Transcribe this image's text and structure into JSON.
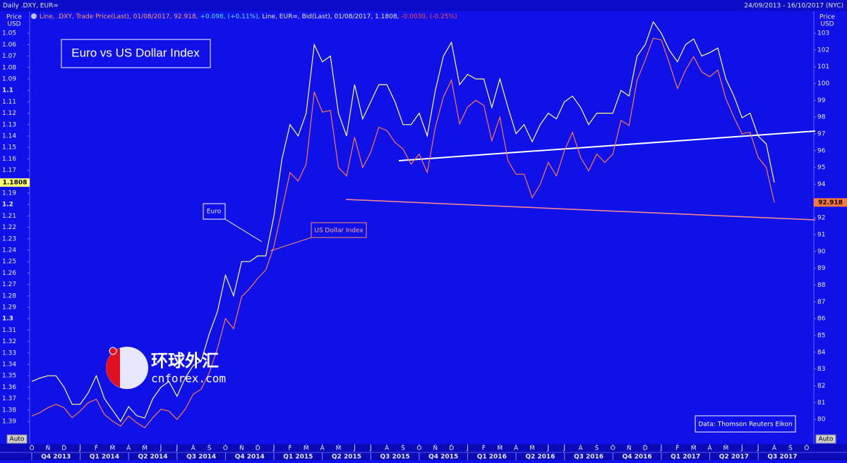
{
  "chart_data": {
    "type": "line",
    "header": "Daily .DXY, EUR=",
    "date_range": "24/09/2013 - 16/10/2017 (NYC)",
    "legend_segments": [
      {
        "text": "Line, .DXY, Trade Price(Last), 01/08/2017, 92.918, ",
        "color": "#ff9a6a"
      },
      {
        "text": "+0.098, (+0.11%), ",
        "color": "#4fe8ff"
      },
      {
        "text": "Line, EUR=, Bid(Last), 01/08/2017, 1.1808, ",
        "color": "#e8e8ff"
      },
      {
        "text": "-0.0030, (-0.25%)",
        "color": "#ff4a4a"
      }
    ],
    "title": "Euro vs US Dollar Index",
    "annotations": [
      {
        "text": "Euro"
      },
      {
        "text": "US Dollar Index"
      }
    ],
    "source": "Data: Thomson Reuters Eikon",
    "watermark": [
      "环球外汇",
      "cnforex.com"
    ],
    "auto_buttons": [
      "Auto",
      "Auto"
    ],
    "y_label": [
      "Price",
      "USD"
    ],
    "y2_label": [
      "Price",
      "USD"
    ],
    "grid": false,
    "categories": [
      "O",
      null,
      "N",
      null,
      "D",
      null,
      "J",
      null,
      "F",
      null,
      "M",
      null,
      "A",
      null,
      "M",
      null,
      "J",
      null,
      "J",
      null,
      "A",
      null,
      "S",
      null,
      "O",
      null,
      "N",
      null,
      "D",
      null,
      "J",
      null,
      "F",
      null,
      "M",
      null,
      "A",
      null,
      "M",
      null,
      "J",
      null,
      "J",
      null,
      "A",
      null,
      "S",
      null,
      "O",
      null,
      "N",
      null,
      "D",
      null,
      "J",
      null,
      "F",
      null,
      "M",
      null,
      "A",
      null,
      "M",
      null,
      "J",
      null,
      "J",
      null,
      "A",
      null,
      "S",
      null,
      "O",
      null,
      "N",
      null,
      "D",
      null,
      "J",
      null,
      "F",
      null,
      "M",
      null,
      "A",
      null,
      "M",
      null,
      "J",
      null,
      "J",
      null,
      "A",
      null,
      "S",
      null,
      "O"
    ],
    "quarters": [
      "Q4 2013",
      "Q1 2014",
      "Q2 2014",
      "Q3 2014",
      "Q4 2014",
      "Q1 2015",
      "Q2 2015",
      "Q3 2015",
      "Q4 2015",
      "Q1 2016",
      "Q2 2016",
      "Q3 2016",
      "Q4 2016",
      "Q1 2017",
      "Q2 2017",
      "Q3 2017"
    ],
    "series": [
      {
        "name": "Euro",
        "color": "#ffff70",
        "axis": "y",
        "tag_text_color": "#000000",
        "values": [
          1.355,
          1.352,
          1.35,
          1.35,
          1.36,
          1.375,
          1.375,
          1.365,
          1.35,
          1.37,
          1.38,
          1.39,
          1.377,
          1.385,
          1.387,
          1.37,
          1.36,
          1.355,
          1.368,
          1.352,
          1.341,
          1.337,
          1.313,
          1.294,
          1.262,
          1.28,
          1.25,
          1.25,
          1.245,
          1.245,
          1.21,
          1.16,
          1.13,
          1.14,
          1.12,
          1.06,
          1.075,
          1.07,
          1.12,
          1.14,
          1.095,
          1.125,
          1.11,
          1.095,
          1.095,
          1.11,
          1.13,
          1.13,
          1.12,
          1.14,
          1.1,
          1.07,
          1.058,
          1.095,
          1.086,
          1.09,
          1.09,
          1.115,
          1.09,
          1.115,
          1.138,
          1.13,
          1.145,
          1.13,
          1.12,
          1.125,
          1.11,
          1.105,
          1.115,
          1.13,
          1.12,
          1.12,
          1.12,
          1.1,
          1.105,
          1.07,
          1.06,
          1.04,
          1.05,
          1.065,
          1.075,
          1.06,
          1.055,
          1.07,
          1.067,
          1.063,
          1.09,
          1.105,
          1.124,
          1.12,
          1.14,
          1.147,
          1.1808,
          null,
          null,
          null,
          null
        ]
      },
      {
        "name": "US Dollar Index",
        "color": "#ff7a3a",
        "axis": "y2",
        "tag_text_color": "#000000",
        "values": [
          80.2,
          80.4,
          80.7,
          80.9,
          80.7,
          80.1,
          80.5,
          81.0,
          81.2,
          80.3,
          79.9,
          79.6,
          80.2,
          79.8,
          79.5,
          80.1,
          80.6,
          80.5,
          80.0,
          80.6,
          81.5,
          81.8,
          82.8,
          84.2,
          86.0,
          85.4,
          87.3,
          87.8,
          88.4,
          88.9,
          90.3,
          92.5,
          94.7,
          94.2,
          95.2,
          99.5,
          98.3,
          98.4,
          95.0,
          94.5,
          96.8,
          95.0,
          95.9,
          97.4,
          97.2,
          96.5,
          96.1,
          95.2,
          95.8,
          94.7,
          97.4,
          99.2,
          100.2,
          97.6,
          98.6,
          99.0,
          98.7,
          96.6,
          98.0,
          95.4,
          94.6,
          94.6,
          93.2,
          94.0,
          95.3,
          94.5,
          96.0,
          97.1,
          95.6,
          94.8,
          95.8,
          95.3,
          95.8,
          97.8,
          97.5,
          100.2,
          101.4,
          102.7,
          102.6,
          101.2,
          99.7,
          100.8,
          101.6,
          100.7,
          100.4,
          100.8,
          99.1,
          98.0,
          97.0,
          97.1,
          95.6,
          95.0,
          92.918,
          null,
          null,
          null,
          null
        ]
      }
    ],
    "ylim": [
      1.4085,
      1.032
    ],
    "yticks": [
      1.05,
      1.06,
      1.07,
      1.08,
      1.09,
      1.1,
      1.11,
      1.12,
      1.13,
      1.14,
      1.15,
      1.16,
      1.17,
      1.18,
      1.19,
      1.2,
      1.21,
      1.22,
      1.23,
      1.24,
      1.25,
      1.26,
      1.27,
      1.28,
      1.29,
      1.3,
      1.31,
      1.32,
      1.33,
      1.34,
      1.35,
      1.36,
      1.37,
      1.38,
      1.39
    ],
    "y2lim": [
      78.62,
      104.22
    ],
    "y2ticks": [
      80,
      81,
      82,
      83,
      84,
      85,
      86,
      87,
      88,
      89,
      90,
      91,
      92,
      93,
      94,
      95,
      96,
      97,
      98,
      99,
      100,
      101,
      102,
      103
    ]
  }
}
